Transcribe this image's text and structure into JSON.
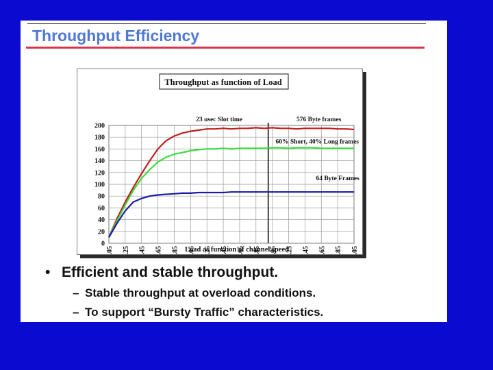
{
  "slide": {
    "title": "Throughput Efficiency",
    "bullets": [
      {
        "text": "Efficient and stable throughput.",
        "sub": [
          "Stable throughput at overload conditions.",
          "To support “Bursty Traffic” characteristics."
        ]
      }
    ],
    "bullet_marker": "•",
    "sub_marker": "–"
  },
  "chart_data": {
    "type": "line",
    "title": "Throughput as function of Load",
    "xlabel": "Load as function of channel speed",
    "ylabel": "",
    "ylim": [
      0,
      200
    ],
    "yticks": [
      0,
      20,
      40,
      60,
      80,
      100,
      120,
      140,
      160,
      180,
      200
    ],
    "x": [
      0.05,
      0.15,
      0.25,
      0.35,
      0.45,
      0.55,
      0.65,
      0.75,
      0.85,
      0.95,
      1.05,
      1.15,
      1.25,
      1.35,
      1.45,
      1.55,
      1.65,
      1.75,
      1.85,
      1.95,
      2.05,
      2.15,
      2.25,
      2.35,
      2.45,
      2.55,
      2.65,
      2.75,
      2.85,
      2.95,
      3.05
    ],
    "xtick_labels": [
      "0.05",
      "0.25",
      "0.45",
      "0.65",
      "0.85",
      "1.05",
      "1.25",
      "1.45",
      "1.65",
      "1.85",
      "2.05",
      "2.25",
      "2.45",
      "2.65",
      "2.85",
      "3.05"
    ],
    "grid": true,
    "annotations": [
      {
        "text": "23 usec Slot time",
        "x": 1.4,
        "y": 207
      },
      {
        "text": "576 Byte frames",
        "x": 2.62,
        "y": 207
      },
      {
        "text": "60% Short, 40% Long frames",
        "x": 2.6,
        "y": 169
      },
      {
        "text": "64 Byte Frames",
        "x": 2.85,
        "y": 107
      }
    ],
    "vline_x": 2.0,
    "series": [
      {
        "color": "#c0201c",
        "values": [
          10,
          42,
          70,
          95,
          118,
          140,
          160,
          174,
          182,
          187,
          190,
          192,
          194,
          194,
          195,
          194,
          195,
          195,
          196,
          195,
          196,
          195,
          195,
          194,
          195,
          195,
          195,
          195,
          194,
          194,
          193
        ]
      },
      {
        "color": "#3bdc3b",
        "values": [
          10,
          38,
          65,
          90,
          110,
          125,
          138,
          146,
          151,
          154,
          157,
          159,
          160,
          160,
          161,
          160,
          161,
          161,
          161,
          161,
          162,
          162,
          161,
          162,
          162,
          162,
          161,
          161,
          161,
          161,
          161
        ]
      },
      {
        "color": "#1a1aa6",
        "values": [
          10,
          34,
          55,
          70,
          76,
          80,
          82,
          83,
          84,
          85,
          85,
          86,
          86,
          86,
          86,
          87,
          87,
          87,
          87,
          87,
          87,
          87,
          87,
          87,
          87,
          87,
          87,
          87,
          87,
          87,
          87
        ]
      }
    ]
  },
  "colors": {
    "background": "#0a0ad0",
    "title": "#4f78d6",
    "title_rule": "#d8334a"
  }
}
